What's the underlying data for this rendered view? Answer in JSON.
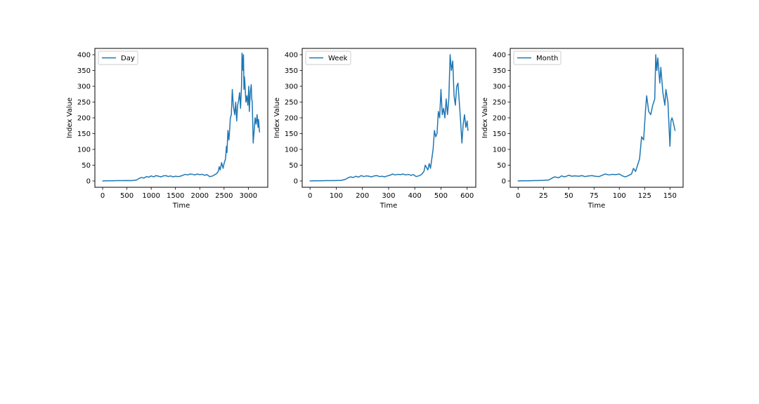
{
  "figure": {
    "background": "#ffffff",
    "line_color": "#1f77b4"
  },
  "chart_data": [
    {
      "type": "line",
      "xlabel": "Time",
      "ylabel": "Index Value",
      "xlim": [
        -160,
        3400
      ],
      "ylim": [
        -20,
        420
      ],
      "xticks": [
        0,
        500,
        1000,
        1500,
        2000,
        2500,
        3000
      ],
      "yticks": [
        0,
        50,
        100,
        150,
        200,
        250,
        300,
        350,
        400
      ],
      "legend": "upper-left",
      "grid": false,
      "series": [
        {
          "name": "Day",
          "x": [
            0,
            100,
            200,
            300,
            400,
            500,
            600,
            700,
            750,
            800,
            850,
            900,
            950,
            1000,
            1050,
            1100,
            1150,
            1200,
            1250,
            1300,
            1350,
            1400,
            1450,
            1500,
            1550,
            1600,
            1650,
            1700,
            1750,
            1800,
            1850,
            1900,
            1950,
            2000,
            2050,
            2100,
            2150,
            2200,
            2250,
            2300,
            2350,
            2380,
            2400,
            2420,
            2450,
            2480,
            2500,
            2530,
            2550,
            2560,
            2580,
            2600,
            2610,
            2630,
            2650,
            2670,
            2690,
            2710,
            2720,
            2740,
            2760,
            2780,
            2800,
            2820,
            2840,
            2850,
            2860,
            2870,
            2880,
            2890,
            2900,
            2910,
            2920,
            2930,
            2950,
            2970,
            2990,
            3010,
            3020,
            3040,
            3060,
            3070,
            3080,
            3090,
            3100,
            3110,
            3120,
            3140,
            3160,
            3180,
            3200,
            3210,
            3230
          ],
          "values": [
            0,
            0.5,
            0.5,
            1,
            1,
            1.5,
            1,
            3,
            8,
            11,
            9,
            14,
            12,
            16,
            13,
            17,
            15,
            13,
            16,
            17,
            14,
            16,
            13,
            15,
            14,
            15,
            18,
            21,
            19,
            22,
            21,
            19,
            22,
            20,
            21,
            18,
            20,
            14,
            15,
            19,
            24,
            30,
            45,
            35,
            58,
            40,
            55,
            70,
            110,
            90,
            160,
            130,
            150,
            200,
            210,
            290,
            240,
            220,
            210,
            250,
            190,
            240,
            255,
            280,
            230,
            270,
            300,
            405,
            380,
            350,
            400,
            290,
            330,
            310,
            250,
            270,
            240,
            300,
            220,
            280,
            305,
            260,
            250,
            190,
            120,
            140,
            160,
            200,
            180,
            210,
            170,
            195,
            155
          ]
        }
      ]
    },
    {
      "type": "line",
      "xlabel": "Time",
      "ylabel": "Index Value",
      "xlim": [
        -30,
        633
      ],
      "ylim": [
        -20,
        420
      ],
      "xticks": [
        0,
        100,
        200,
        300,
        400,
        500,
        600
      ],
      "yticks": [
        0,
        50,
        100,
        150,
        200,
        250,
        300,
        350,
        400
      ],
      "legend": "upper-left",
      "grid": false,
      "series": [
        {
          "name": "Week",
          "x": [
            0,
            20,
            40,
            60,
            80,
            100,
            120,
            135,
            145,
            155,
            165,
            175,
            185,
            195,
            205,
            215,
            225,
            235,
            245,
            255,
            265,
            275,
            285,
            295,
            305,
            315,
            325,
            335,
            345,
            355,
            365,
            375,
            385,
            395,
            405,
            415,
            425,
            435,
            440,
            450,
            455,
            460,
            465,
            470,
            475,
            480,
            485,
            490,
            495,
            500,
            505,
            510,
            515,
            520,
            525,
            530,
            535,
            540,
            545,
            550,
            555,
            560,
            565,
            570,
            575,
            580,
            585,
            590,
            595,
            600,
            603
          ],
          "values": [
            0,
            0.5,
            0.5,
            1,
            1,
            1.5,
            2,
            5,
            10,
            13,
            11,
            15,
            12,
            17,
            14,
            16,
            15,
            13,
            16,
            17,
            14,
            15,
            13,
            16,
            18,
            22,
            19,
            21,
            20,
            22,
            19,
            21,
            18,
            20,
            14,
            16,
            20,
            30,
            50,
            35,
            55,
            40,
            70,
            100,
            160,
            140,
            150,
            220,
            200,
            290,
            210,
            230,
            200,
            260,
            210,
            260,
            400,
            350,
            380,
            270,
            240,
            300,
            310,
            250,
            190,
            120,
            180,
            210,
            170,
            190,
            160
          ]
        }
      ]
    },
    {
      "type": "line",
      "xlabel": "Time",
      "ylabel": "Index Value",
      "xlim": [
        -7.8,
        163
      ],
      "ylim": [
        -20,
        420
      ],
      "xticks": [
        0,
        25,
        50,
        75,
        100,
        125,
        150
      ],
      "yticks": [
        0,
        50,
        100,
        150,
        200,
        250,
        300,
        350,
        400
      ],
      "legend": "upper-left",
      "grid": false,
      "series": [
        {
          "name": "Month",
          "x": [
            0,
            5,
            10,
            15,
            20,
            25,
            30,
            33,
            36,
            40,
            43,
            46,
            50,
            53,
            56,
            60,
            63,
            66,
            70,
            73,
            76,
            80,
            83,
            86,
            90,
            93,
            96,
            100,
            103,
            106,
            109,
            112,
            114,
            116,
            118,
            120,
            122,
            124,
            126,
            127,
            129,
            131,
            133,
            135,
            136,
            137,
            138,
            140,
            141,
            142,
            143,
            145,
            146,
            148,
            150,
            151,
            152,
            153,
            155
          ],
          "values": [
            0,
            0.5,
            0.5,
            1,
            1.5,
            2,
            3,
            8,
            13,
            10,
            16,
            13,
            18,
            15,
            16,
            15,
            17,
            14,
            16,
            17,
            15,
            14,
            18,
            22,
            19,
            21,
            20,
            22,
            16,
            13,
            17,
            22,
            40,
            30,
            50,
            70,
            140,
            130,
            230,
            270,
            220,
            210,
            240,
            260,
            400,
            350,
            390,
            310,
            360,
            320,
            280,
            240,
            290,
            250,
            110,
            190,
            200,
            190,
            160
          ]
        }
      ]
    }
  ]
}
